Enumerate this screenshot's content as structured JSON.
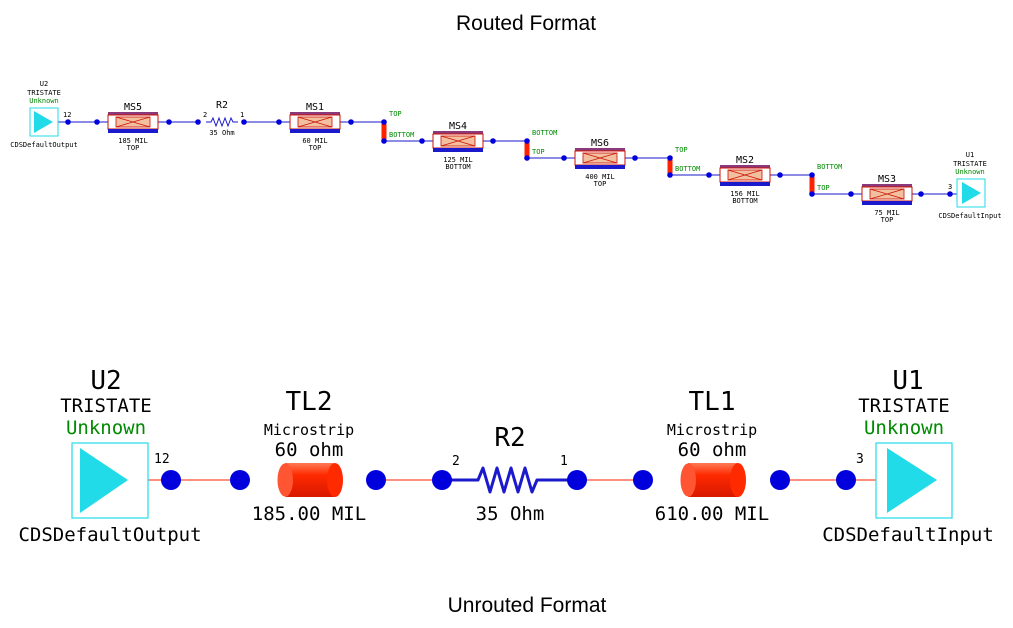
{
  "titles": {
    "routed": "Routed Format",
    "unrouted": "Unrouted Format"
  },
  "colors": {
    "wire": "#1a1acc",
    "pin": "#0000dd",
    "buffer": "#22dbe8",
    "via": "#ff2200",
    "net_label": "#008a00",
    "microstrip": "#ff2200"
  },
  "routed": {
    "u2": {
      "ref": "U2",
      "type": "TRISTATE",
      "status": "Unknown",
      "cell": "CDSDefaultOutput",
      "pin": "12"
    },
    "u1": {
      "ref": "U1",
      "type": "TRISTATE",
      "status": "Unknown",
      "cell": "CDSDefaultInput",
      "pin": "3"
    },
    "r2": {
      "ref": "R2",
      "value": "35 Ohm",
      "pin_left": "2",
      "pin_right": "1"
    },
    "ms": [
      {
        "ref": "MS5",
        "length": "185 MIL",
        "layer": "TOP"
      },
      {
        "ref": "MS1",
        "length": "60 MIL",
        "layer": "TOP"
      },
      {
        "ref": "MS4",
        "length": "125 MIL",
        "layer": "BOTTOM"
      },
      {
        "ref": "MS6",
        "length": "400 MIL",
        "layer": "TOP"
      },
      {
        "ref": "MS2",
        "length": "156 MIL",
        "layer": "BOTTOM"
      },
      {
        "ref": "MS3",
        "length": "75 MIL",
        "layer": "TOP"
      }
    ],
    "vias": [
      {
        "upper": "TOP",
        "lower": "BOTTOM"
      },
      {
        "upper": "BOTTOM",
        "lower": "TOP"
      },
      {
        "upper": "TOP",
        "lower": "BOTTOM"
      },
      {
        "upper": "BOTTOM",
        "lower": "TOP"
      }
    ]
  },
  "unrouted": {
    "u2": {
      "ref": "U2",
      "type": "TRISTATE",
      "status": "Unknown",
      "cell": "CDSDefaultOutput",
      "pin": "12"
    },
    "tl2": {
      "ref": "TL2",
      "kind": "Microstrip",
      "impedance": "60 ohm",
      "length": "185.00 MIL"
    },
    "r2": {
      "ref": "R2",
      "value": "35 Ohm",
      "pin_left": "2",
      "pin_right": "1"
    },
    "tl1": {
      "ref": "TL1",
      "kind": "Microstrip",
      "impedance": "60 ohm",
      "length": "610.00 MIL"
    },
    "u1": {
      "ref": "U1",
      "type": "TRISTATE",
      "status": "Unknown",
      "cell": "CDSDefaultInput",
      "pin": "3"
    }
  }
}
